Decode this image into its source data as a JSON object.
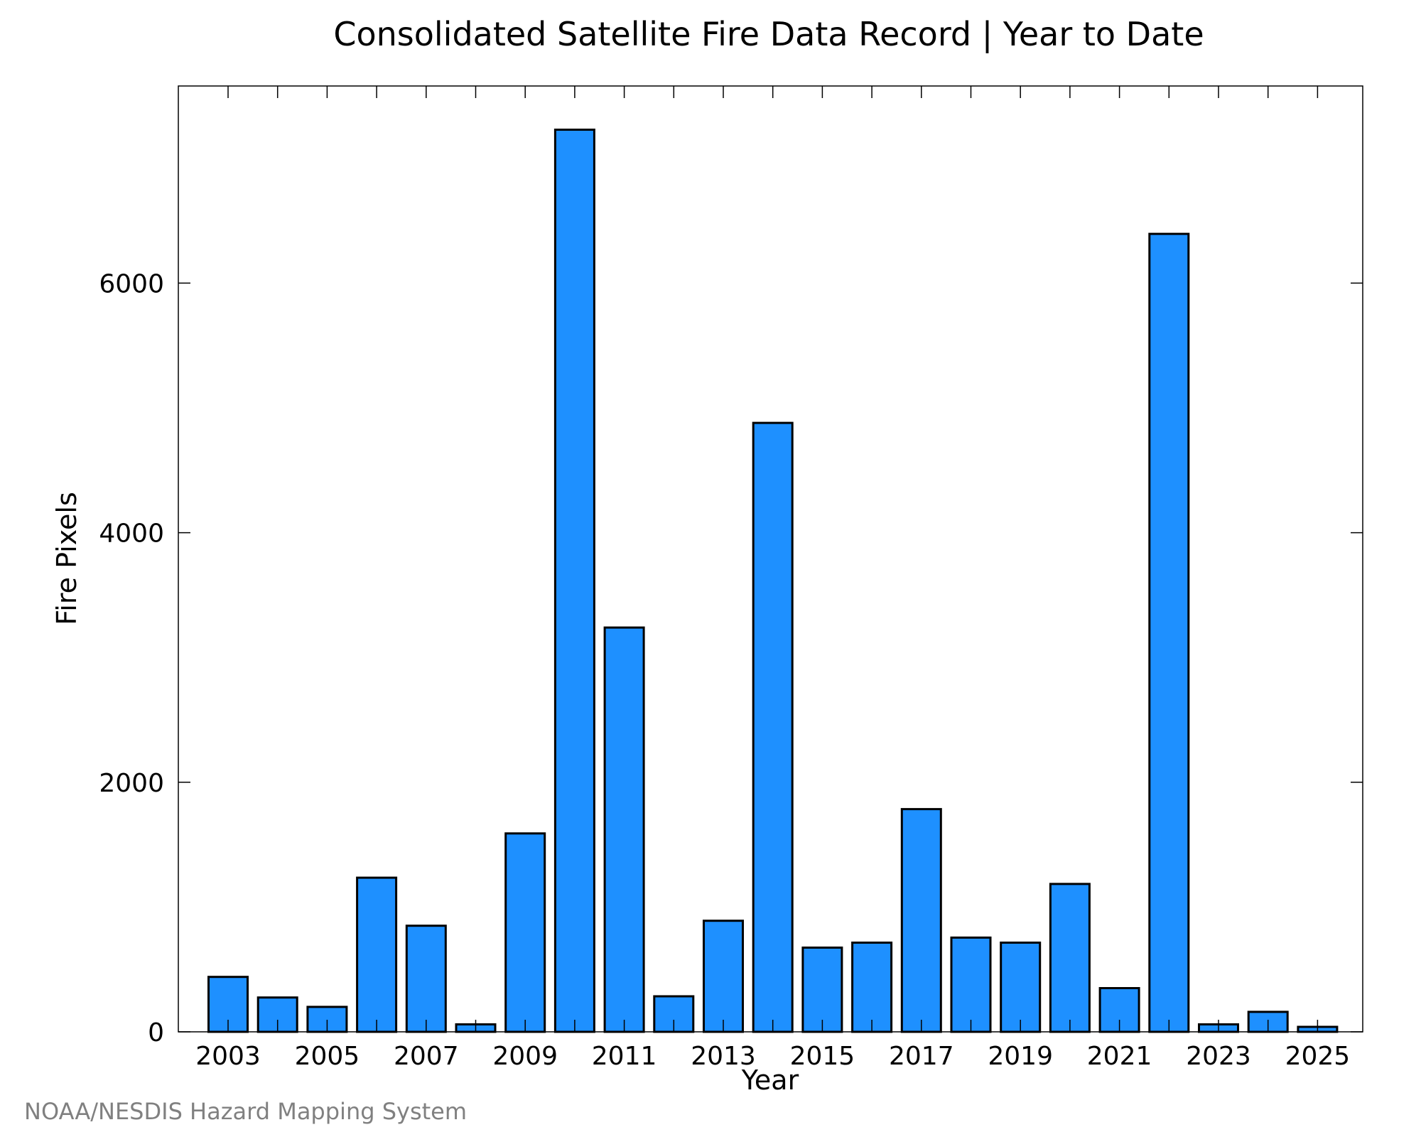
{
  "chart_data": {
    "type": "bar",
    "title": "Consolidated Satellite Fire Data Record | Year to Date",
    "xlabel": "Year",
    "ylabel": "Fire Pixels",
    "categories": [
      "2003",
      "2004",
      "2005",
      "2006",
      "2007",
      "2008",
      "2009",
      "2010",
      "2011",
      "2012",
      "2013",
      "2014",
      "2015",
      "2016",
      "2017",
      "2018",
      "2019",
      "2020",
      "2021",
      "2022",
      "2023",
      "2024",
      "2025"
    ],
    "x_tick_labels": [
      "2003",
      "2005",
      "2007",
      "2009",
      "2011",
      "2013",
      "2015",
      "2017",
      "2019",
      "2021",
      "2023",
      "2025"
    ],
    "values": [
      440,
      275,
      200,
      1235,
      850,
      60,
      1590,
      7230,
      3240,
      285,
      890,
      4880,
      675,
      715,
      1785,
      755,
      715,
      1185,
      350,
      6395,
      60,
      160,
      40
    ],
    "ylim": [
      0,
      7580
    ],
    "y_ticks": [
      0,
      2000,
      4000,
      6000
    ],
    "bar_color": "#1e90ff",
    "grid": false,
    "legend": "none"
  },
  "footer": {
    "credit": "NOAA/NESDIS Hazard Mapping System"
  }
}
